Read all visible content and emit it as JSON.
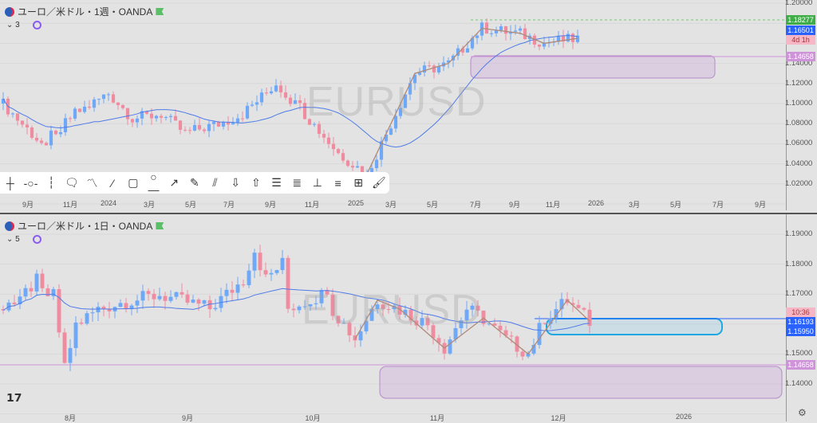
{
  "top": {
    "title": "ユーロ／米ドル・1週・OANDA",
    "indicator_count": "3",
    "watermark": "EURUSD",
    "price_labels": [
      "1.20000",
      "1.14000",
      "1.12000",
      "1.10000",
      "1.08000",
      "1.06000",
      "1.04000",
      "1.02000"
    ],
    "tags": [
      {
        "text": "1.18277",
        "color": "#3fae49"
      },
      {
        "text": "1.16501",
        "color": "#2962ff"
      },
      {
        "text": "4d 1h",
        "color": "#f7b6c5"
      },
      {
        "text": "1.14658",
        "color": "#ce93d8"
      }
    ],
    "time_labels": [
      "9月",
      "11月",
      "2024",
      "3月",
      "5月",
      "7月",
      "9月",
      "11月",
      "2025",
      "3月",
      "5月",
      "7月",
      "9月",
      "11月",
      "2026",
      "3月",
      "5月",
      "7月",
      "9月"
    ],
    "price_range": [
      1.0,
      1.2
    ],
    "key_prices": [
      [
        0,
        1.1
      ],
      [
        8,
        1.06
      ],
      [
        15,
        1.09
      ],
      [
        22,
        1.11
      ],
      [
        27,
        1.085
      ],
      [
        33,
        1.09
      ],
      [
        38,
        1.07
      ],
      [
        45,
        1.08
      ],
      [
        50,
        1.09
      ],
      [
        55,
        1.11
      ],
      [
        57,
        1.12
      ],
      [
        63,
        1.09
      ],
      [
        70,
        1.05
      ],
      [
        76,
        1.03
      ],
      [
        81,
        1.08
      ],
      [
        86,
        1.13
      ],
      [
        93,
        1.14
      ],
      [
        100,
        1.175
      ],
      [
        108,
        1.17
      ],
      [
        113,
        1.16
      ],
      [
        120,
        1.165
      ]
    ]
  },
  "toolbar": {
    "tools": [
      "crosshair-tool",
      "horizontal-ray-tool",
      "vertical-line-tool",
      "callout-tool",
      "path-tool",
      "trend-line-tool",
      "rectangle-tool",
      "ray-tool",
      "arrow-line-tool",
      "brush-tool",
      "parallel-channel-tool",
      "arrow-down-tool",
      "arrow-up-tool",
      "fib-retracement-tool",
      "regression-tool",
      "measure-tool",
      "parallel-lines-tool",
      "date-price-range-tool",
      "highlighter-tool"
    ]
  },
  "bottom": {
    "title": "ユーロ／米ドル・1日・OANDA",
    "indicator_count": "5",
    "watermark": "EURUSD",
    "price_labels": [
      "1.19000",
      "1.18000",
      "1.17000",
      "1.15000",
      "1.14000"
    ],
    "tags": [
      {
        "text": "10:36",
        "color": "#f7b6c5"
      },
      {
        "text": "1.16193",
        "color": "#2962ff"
      },
      {
        "text": "1.15950",
        "color": "#2962ff"
      },
      {
        "text": "1.14658",
        "color": "#ce93d8"
      }
    ],
    "time_labels": [
      "8月",
      "9月",
      "10月",
      "11月",
      "12月",
      "2026"
    ],
    "price_range": [
      1.135,
      1.195
    ],
    "key_prices": [
      [
        0,
        1.165
      ],
      [
        6,
        1.175
      ],
      [
        9,
        1.17
      ],
      [
        11,
        1.145
      ],
      [
        13,
        1.16
      ],
      [
        17,
        1.165
      ],
      [
        28,
        1.17
      ],
      [
        37,
        1.165
      ],
      [
        43,
        1.175
      ],
      [
        45,
        1.185
      ],
      [
        47,
        1.175
      ],
      [
        50,
        1.18
      ],
      [
        51,
        1.165
      ],
      [
        57,
        1.17
      ],
      [
        63,
        1.155
      ],
      [
        67,
        1.168
      ],
      [
        71,
        1.165
      ],
      [
        76,
        1.16
      ],
      [
        79,
        1.152
      ],
      [
        83,
        1.165
      ],
      [
        86,
        1.162
      ],
      [
        90,
        1.155
      ],
      [
        94,
        1.15
      ],
      [
        97,
        1.162
      ],
      [
        101,
        1.168
      ],
      [
        105,
        1.161
      ]
    ]
  },
  "colors": {
    "up": "#6ea8f7",
    "down": "#f08ca0",
    "ma": "#4f7be8",
    "zigzag": "#b08a78"
  }
}
